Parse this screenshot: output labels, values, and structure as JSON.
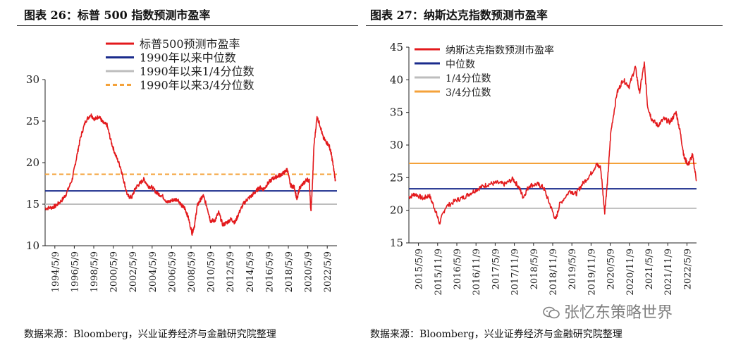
{
  "left": {
    "title": "图表 26：标普 500 指数预测市盈率",
    "source": "数据来源：Bloomberg，兴业证券经济与金融研究院整理",
    "chart_data": {
      "type": "line",
      "title": "标普500指数预测市盈率",
      "xlabel": "",
      "ylabel": "",
      "ylim": [
        10,
        30
      ],
      "yticks": [
        10,
        15,
        20,
        25,
        30
      ],
      "x_tick_labels": [
        "1994/5/9",
        "1996/5/9",
        "1998/5/9",
        "2000/5/9",
        "2002/5/9",
        "2004/5/9",
        "2006/5/9",
        "2008/5/9",
        "2010/5/9",
        "2012/5/9",
        "2014/5/9",
        "2016/5/9",
        "2018/5/9",
        "2020/5/9",
        "2022/5/9"
      ],
      "xlim": [
        1994.35,
        2022.85
      ],
      "legend_position": "top-left",
      "series": [
        {
          "name": "标普500预测市盈率",
          "color": "#e3191c",
          "style": "solid",
          "x": [
            1994.35,
            1995.0,
            1995.4,
            1996.0,
            1996.4,
            1997.0,
            1997.4,
            1997.8,
            1998.3,
            1998.8,
            1999.2,
            1999.6,
            2000.0,
            2000.4,
            2000.8,
            2001.2,
            2001.7,
            2002.0,
            2002.4,
            2002.8,
            2003.2,
            2003.6,
            2004.0,
            2004.4,
            2004.8,
            2005.3,
            2005.8,
            2006.3,
            2006.8,
            2007.3,
            2007.7,
            2008.0,
            2008.3,
            2008.7,
            2008.95,
            2009.2,
            2009.5,
            2009.8,
            2010.2,
            2010.5,
            2010.9,
            2011.3,
            2011.7,
            2012.1,
            2012.5,
            2012.9,
            2013.3,
            2013.7,
            2014.1,
            2014.5,
            2014.9,
            2015.3,
            2015.7,
            2016.1,
            2016.5,
            2016.9,
            2017.3,
            2017.7,
            2018.0,
            2018.3,
            2018.7,
            2018.95,
            2019.2,
            2019.6,
            2019.9,
            2020.15,
            2020.3,
            2020.45,
            2020.6,
            2020.9,
            2021.2,
            2021.5,
            2021.8,
            2022.1,
            2022.3,
            2022.5,
            2022.7
          ],
          "values": [
            14.5,
            14.6,
            14.8,
            15.5,
            16.2,
            18.0,
            20.5,
            23.0,
            25.0,
            25.8,
            25.2,
            25.6,
            24.8,
            24.5,
            22.5,
            21.0,
            19.5,
            18.0,
            16.0,
            15.8,
            17.0,
            17.5,
            18.0,
            17.2,
            17.0,
            16.3,
            16.0,
            15.2,
            15.5,
            15.6,
            14.8,
            14.5,
            13.5,
            11.5,
            12.5,
            14.8,
            15.5,
            16.0,
            14.5,
            13.0,
            13.0,
            14.0,
            12.5,
            12.8,
            13.2,
            12.8,
            14.0,
            15.0,
            15.6,
            16.0,
            16.5,
            17.0,
            16.8,
            17.5,
            18.0,
            18.3,
            18.5,
            18.8,
            19.2,
            17.3,
            17.0,
            15.5,
            17.0,
            17.5,
            18.0,
            17.8,
            14.0,
            17.2,
            22.0,
            25.5,
            24.5,
            23.0,
            22.5,
            22.0,
            21.0,
            19.5,
            17.8
          ]
        },
        {
          "name": "1990年以来中位数",
          "color": "#1a2b8c",
          "style": "solid",
          "constant": 16.6
        },
        {
          "name": "1990年以来1/4分位数",
          "color": "#bdbdbd",
          "style": "solid",
          "constant": 15.0
        },
        {
          "name": "1990年以来3/4分位数",
          "color": "#f4a23a",
          "style": "dashed",
          "constant": 18.6
        }
      ]
    }
  },
  "right": {
    "title": "图表 27：纳斯达克指数预测市盈率",
    "source": "数据来源：Bloomberg，兴业证券经济与金融研究院整理",
    "chart_data": {
      "type": "line",
      "title": "纳斯达克指数预测市盈率",
      "xlabel": "",
      "ylabel": "",
      "ylim": [
        15,
        45
      ],
      "yticks": [
        15,
        20,
        25,
        30,
        35,
        40,
        45
      ],
      "x_tick_labels": [
        "2015/5/9",
        "2015/11/9",
        "2016/5/9",
        "2016/11/9",
        "2017/5/9",
        "2017/11/9",
        "2018/5/9",
        "2018/11/9",
        "2019/5/9",
        "2019/11/9",
        "2020/5/9",
        "2020/11/9",
        "2021/5/9",
        "2021/11/9",
        "2022/5/9"
      ],
      "xlim": [
        2015.35,
        2022.4
      ],
      "legend_position": "top-left",
      "series": [
        {
          "name": "纳斯达克指数预测市盈率",
          "color": "#e3191c",
          "style": "solid",
          "x": [
            2015.35,
            2015.5,
            2015.7,
            2015.85,
            2016.0,
            2016.1,
            2016.25,
            2016.5,
            2016.7,
            2016.9,
            2017.1,
            2017.3,
            2017.5,
            2017.7,
            2017.9,
            2018.05,
            2018.15,
            2018.3,
            2018.5,
            2018.65,
            2018.8,
            2018.95,
            2019.05,
            2019.3,
            2019.45,
            2019.6,
            2019.8,
            2019.95,
            2020.05,
            2020.15,
            2020.22,
            2020.3,
            2020.45,
            2020.6,
            2020.75,
            2020.9,
            2021.0,
            2021.12,
            2021.2,
            2021.3,
            2021.45,
            2021.6,
            2021.75,
            2021.9,
            2022.0,
            2022.1,
            2022.2,
            2022.3,
            2022.4
          ],
          "values": [
            22.0,
            22.5,
            21.8,
            22.3,
            20.0,
            18.0,
            20.5,
            21.5,
            22.0,
            22.8,
            23.5,
            24.0,
            24.2,
            24.0,
            24.8,
            23.5,
            22.0,
            23.8,
            24.0,
            23.5,
            21.0,
            18.5,
            21.0,
            23.0,
            22.5,
            24.0,
            25.5,
            27.0,
            26.5,
            19.8,
            24.5,
            32.0,
            38.0,
            40.0,
            39.0,
            42.0,
            38.0,
            42.5,
            36.0,
            34.0,
            33.0,
            34.0,
            33.5,
            35.0,
            32.0,
            28.0,
            27.0,
            28.5,
            24.5
          ]
        },
        {
          "name": "中位数",
          "color": "#1a2b8c",
          "style": "solid",
          "constant": 23.3
        },
        {
          "name": "1/4分位数",
          "color": "#bdbdbd",
          "style": "solid",
          "constant": 20.3
        },
        {
          "name": "3/4分位数",
          "color": "#f4a23a",
          "style": "solid",
          "constant": 27.2
        }
      ]
    }
  },
  "watermark": "张忆东策略世界"
}
